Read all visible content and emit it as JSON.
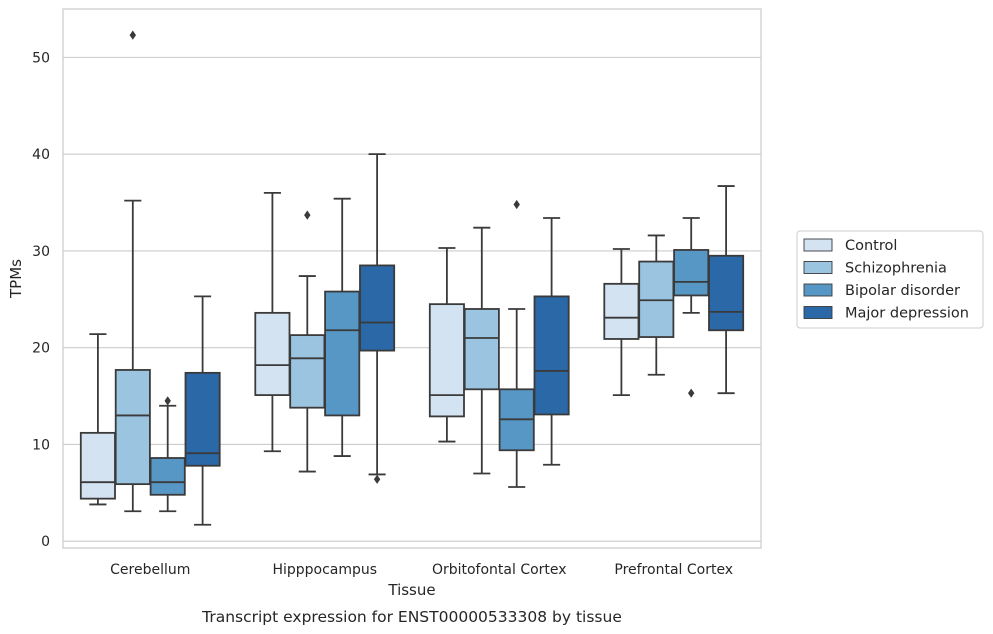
{
  "chart_data": {
    "type": "box",
    "title": "",
    "caption": "Transcript expression for ENST00000533308 by tissue",
    "xlabel": "Tissue",
    "ylabel": "TPMs",
    "ylim": [
      -0.7,
      55
    ],
    "yticks": [
      0,
      10,
      20,
      30,
      40,
      50
    ],
    "grid": "horizontal",
    "legend_position": "right",
    "categories": [
      "Cerebellum",
      "Hipppocampus",
      "Orbitofontal Cortex",
      "Prefrontal Cortex"
    ],
    "series": [
      {
        "name": "Control",
        "color": "#d4e3f2",
        "boxes": [
          {
            "whisker_low": 3.8,
            "q1": 4.4,
            "median": 6.1,
            "q3": 11.2,
            "whisker_high": 21.4,
            "outliers": []
          },
          {
            "whisker_low": 9.3,
            "q1": 15.1,
            "median": 18.2,
            "q3": 23.6,
            "whisker_high": 36.0,
            "outliers": []
          },
          {
            "whisker_low": 10.3,
            "q1": 12.9,
            "median": 15.1,
            "q3": 24.5,
            "whisker_high": 30.3,
            "outliers": []
          },
          {
            "whisker_low": 15.1,
            "q1": 20.9,
            "median": 23.1,
            "q3": 26.6,
            "whisker_high": 30.2,
            "outliers": []
          }
        ]
      },
      {
        "name": "Schizophrenia",
        "color": "#9ac4df",
        "boxes": [
          {
            "whisker_low": 3.1,
            "q1": 5.9,
            "median": 13.0,
            "q3": 17.7,
            "whisker_high": 35.2,
            "outliers": [
              52.3
            ]
          },
          {
            "whisker_low": 7.2,
            "q1": 13.8,
            "median": 18.9,
            "q3": 21.3,
            "whisker_high": 27.4,
            "outliers": [
              33.7
            ]
          },
          {
            "whisker_low": 7.0,
            "q1": 15.7,
            "median": 21.0,
            "q3": 24.0,
            "whisker_high": 32.4,
            "outliers": []
          },
          {
            "whisker_low": 17.2,
            "q1": 21.1,
            "median": 24.9,
            "q3": 28.9,
            "whisker_high": 31.6,
            "outliers": []
          }
        ]
      },
      {
        "name": "Bipolar disorder",
        "color": "#5797c5",
        "boxes": [
          {
            "whisker_low": 3.1,
            "q1": 4.8,
            "median": 6.1,
            "q3": 8.6,
            "whisker_high": 14.0,
            "outliers": [
              14.5
            ]
          },
          {
            "whisker_low": 8.8,
            "q1": 13.0,
            "median": 21.8,
            "q3": 25.8,
            "whisker_high": 35.4,
            "outliers": []
          },
          {
            "whisker_low": 5.6,
            "q1": 9.4,
            "median": 12.6,
            "q3": 15.7,
            "whisker_high": 24.0,
            "outliers": [
              34.8
            ]
          },
          {
            "whisker_low": 23.6,
            "q1": 25.4,
            "median": 26.8,
            "q3": 30.1,
            "whisker_high": 33.4,
            "outliers": [
              15.3
            ]
          }
        ]
      },
      {
        "name": "Major depression",
        "color": "#2a68a8",
        "boxes": [
          {
            "whisker_low": 1.7,
            "q1": 7.8,
            "median": 9.1,
            "q3": 17.4,
            "whisker_high": 25.3,
            "outliers": []
          },
          {
            "whisker_low": 6.9,
            "q1": 19.7,
            "median": 22.6,
            "q3": 28.5,
            "whisker_high": 40.0,
            "outliers": [
              6.4
            ]
          },
          {
            "whisker_low": 7.9,
            "q1": 13.1,
            "median": 17.6,
            "q3": 25.3,
            "whisker_high": 33.4,
            "outliers": []
          },
          {
            "whisker_low": 15.3,
            "q1": 21.8,
            "median": 23.7,
            "q3": 29.5,
            "whisker_high": 36.7,
            "outliers": []
          }
        ]
      }
    ]
  }
}
